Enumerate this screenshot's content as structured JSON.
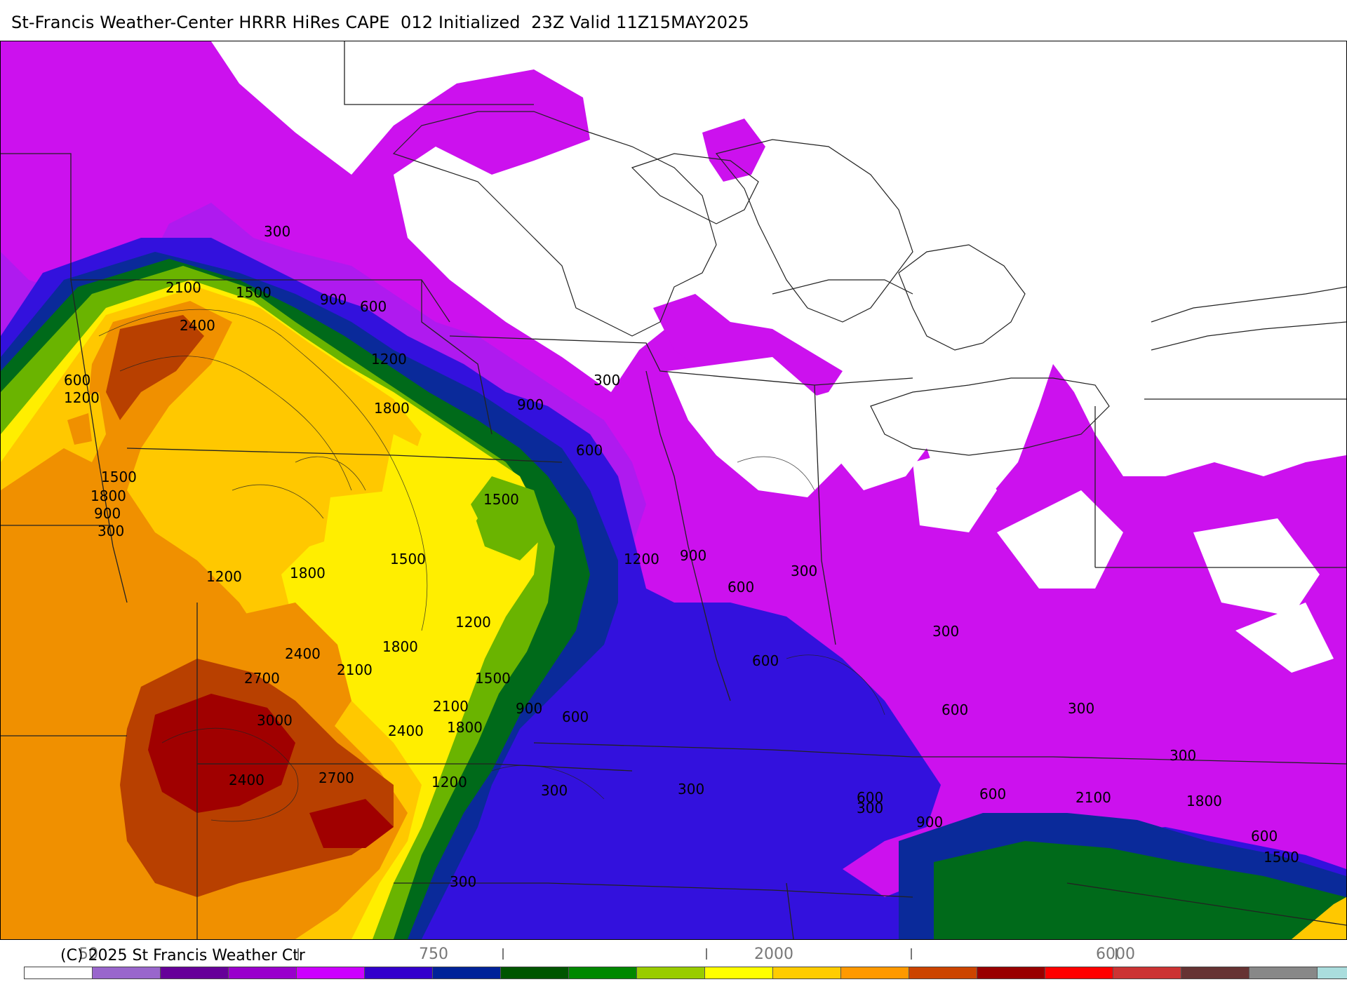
{
  "title": "St-Francis Weather-Center HRRR HiRes CAPE  012 Initialized  23Z Valid 11Z15MAY2025",
  "copyright": "(C) 2025 St Francis Weather Ctr",
  "colorbar": {
    "tick_labels": [
      {
        "text": "50",
        "tick": 50
      },
      {
        "text": "750",
        "tick": 750
      },
      {
        "text": "2000",
        "tick": 2000
      },
      {
        "text": "6000",
        "tick": 6000
      }
    ],
    "colors": [
      "#ffffff",
      "#9966cc",
      "#660099",
      "#9900cc",
      "#cc00ff",
      "#3300cc",
      "#002299",
      "#005500",
      "#008800",
      "#99cc00",
      "#ffff00",
      "#ffcc00",
      "#ff9900",
      "#cc4400",
      "#990000",
      "#ff0000",
      "#cc3333",
      "#663333",
      "#888888",
      "#aadddd"
    ]
  },
  "contour_labels": [
    {
      "text": "300"
    },
    {
      "text": "2100"
    },
    {
      "text": "1500"
    },
    {
      "text": "900"
    },
    {
      "text": "600"
    },
    {
      "text": "2400"
    },
    {
      "text": "600"
    },
    {
      "text": "1200"
    },
    {
      "text": "1200"
    },
    {
      "text": "300"
    },
    {
      "text": "1800"
    },
    {
      "text": "900"
    },
    {
      "text": "600"
    },
    {
      "text": "1500"
    },
    {
      "text": "1800"
    },
    {
      "text": "900"
    },
    {
      "text": "300"
    },
    {
      "text": "1500"
    },
    {
      "text": "1500"
    },
    {
      "text": "1200"
    },
    {
      "text": "900"
    },
    {
      "text": "300"
    },
    {
      "text": "1800"
    },
    {
      "text": "600"
    },
    {
      "text": "1200"
    },
    {
      "text": "1200"
    },
    {
      "text": "1800"
    },
    {
      "text": "2400"
    },
    {
      "text": "2100"
    },
    {
      "text": "300"
    },
    {
      "text": "600"
    },
    {
      "text": "2700"
    },
    {
      "text": "1500"
    },
    {
      "text": "2100"
    },
    {
      "text": "3000"
    },
    {
      "text": "900"
    },
    {
      "text": "600"
    },
    {
      "text": "1800"
    },
    {
      "text": "2400"
    },
    {
      "text": "600"
    },
    {
      "text": "300"
    },
    {
      "text": "2400"
    },
    {
      "text": "2700"
    },
    {
      "text": "1200"
    },
    {
      "text": "300"
    },
    {
      "text": "300"
    },
    {
      "text": "300"
    },
    {
      "text": "600"
    },
    {
      "text": "600"
    },
    {
      "text": "300"
    },
    {
      "text": "2100"
    },
    {
      "text": "1800"
    },
    {
      "text": "900"
    },
    {
      "text": "600"
    },
    {
      "text": "1500"
    },
    {
      "text": "300"
    }
  ]
}
